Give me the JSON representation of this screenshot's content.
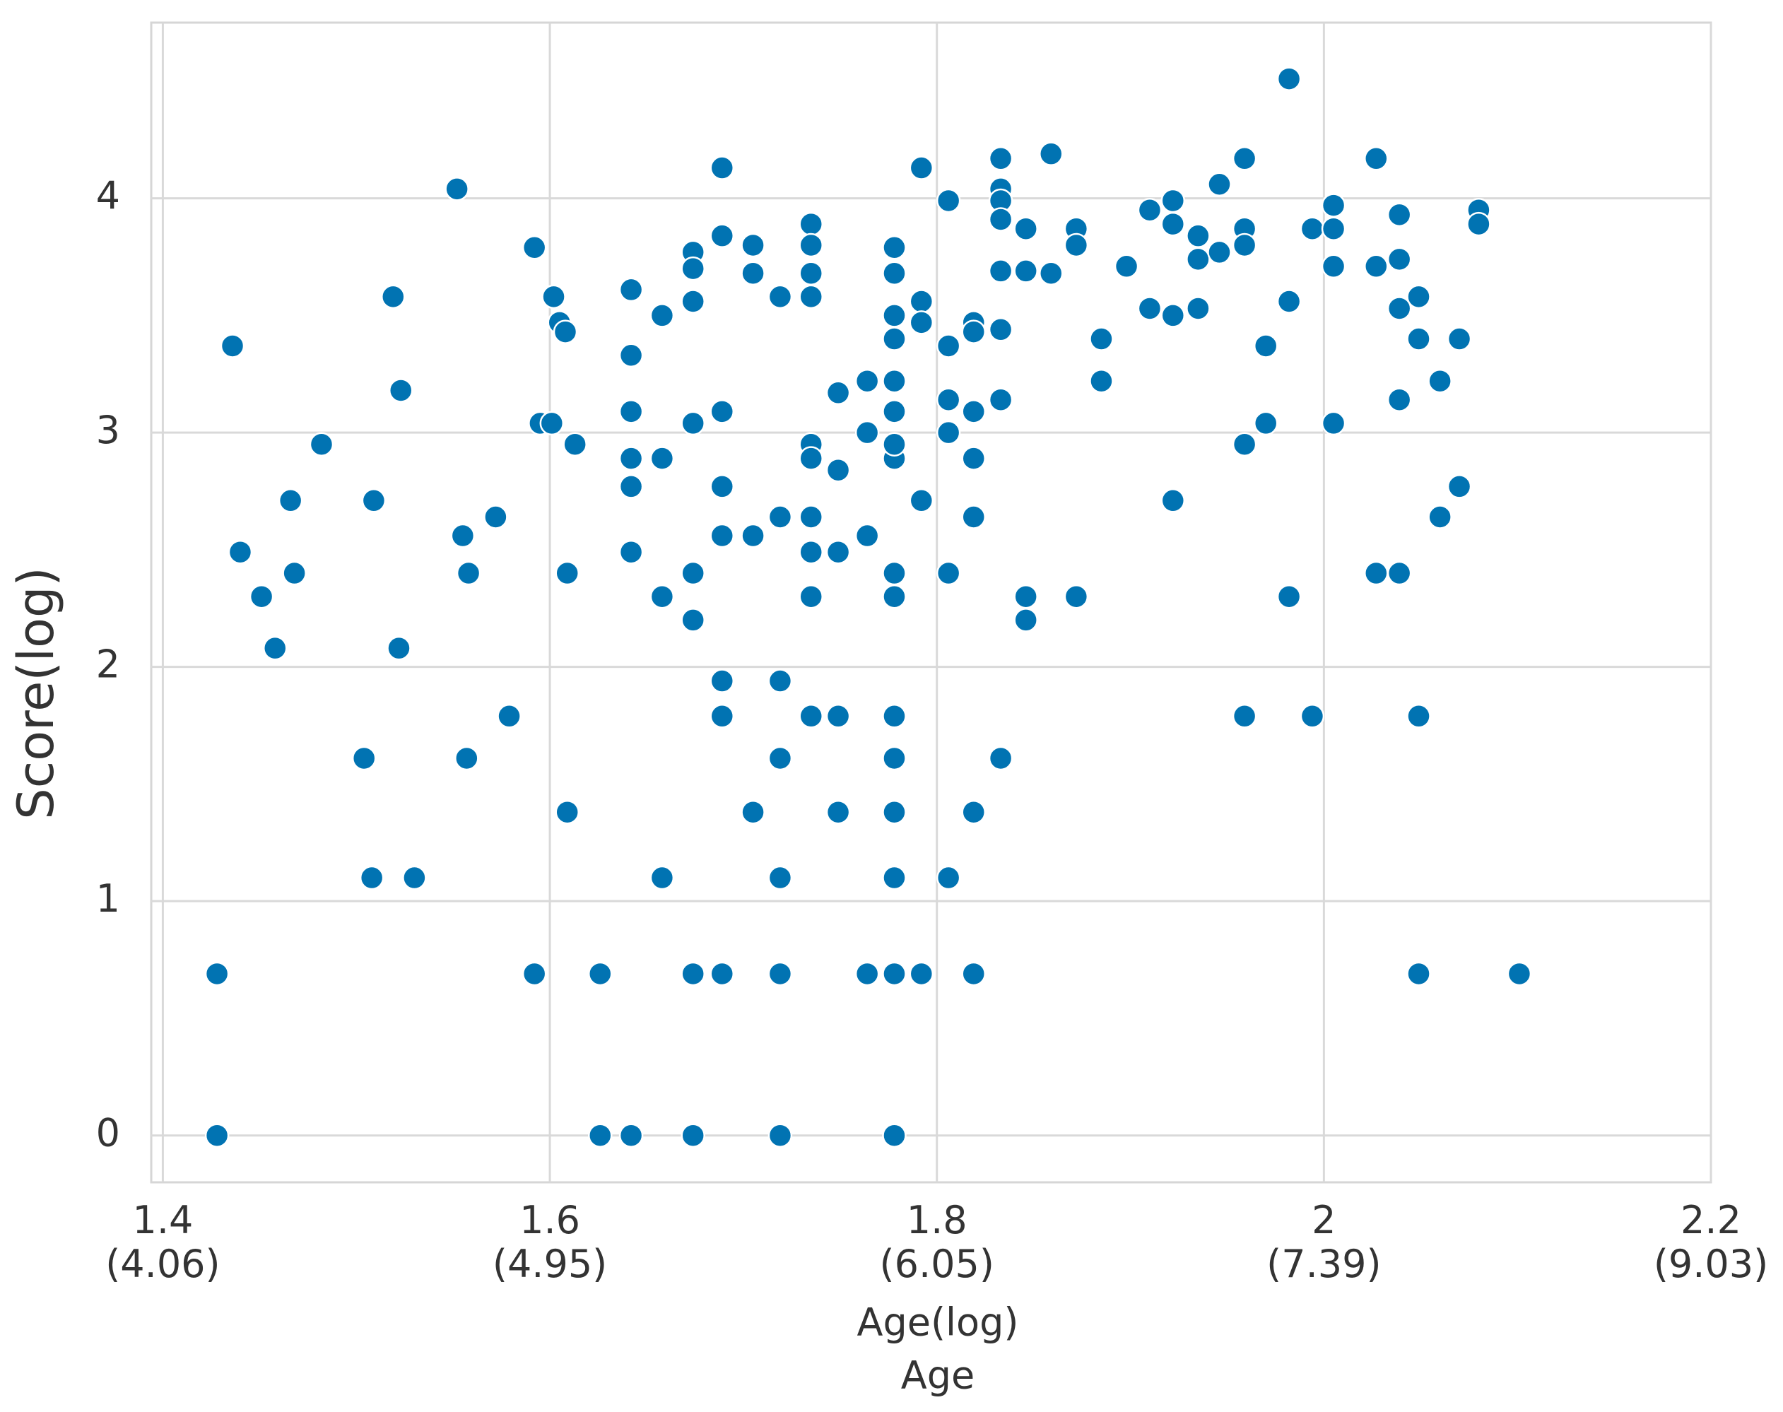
{
  "chart_data": {
    "type": "scatter",
    "xlabel": "Age(log)",
    "xlabel2": "Age",
    "ylabel": "Score(log)",
    "color": "#0173b2",
    "grid": true,
    "xlim": [
      1.394,
      2.2
    ],
    "ylim": [
      -0.2,
      4.75
    ],
    "xticks": [
      {
        "value": 1.4,
        "label": "1.4\n(4.06)"
      },
      {
        "value": 1.6,
        "label": "1.6\n(4.95)"
      },
      {
        "value": 1.8,
        "label": "1.8\n(6.05)"
      },
      {
        "value": 2.0,
        "label": "2\n(7.39)"
      },
      {
        "value": 2.2,
        "label": "2.2\n(9.03)"
      }
    ],
    "yticks": [
      0,
      1,
      2,
      3,
      4
    ],
    "x": [
      1.428,
      1.428,
      1.436,
      1.44,
      1.451,
      1.458,
      1.466,
      1.468,
      1.482,
      1.504,
      1.508,
      1.509,
      1.519,
      1.522,
      1.523,
      1.53,
      1.552,
      1.555,
      1.557,
      1.558,
      1.572,
      1.579,
      1.592,
      1.592,
      1.595,
      1.601,
      1.602,
      1.605,
      1.608,
      1.609,
      1.609,
      1.613,
      1.626,
      1.626,
      1.642,
      1.642,
      1.642,
      1.642,
      1.642,
      1.642,
      1.642,
      1.658,
      1.658,
      1.658,
      1.658,
      1.674,
      1.674,
      1.674,
      1.674,
      1.674,
      1.674,
      1.674,
      1.674,
      1.689,
      1.689,
      1.689,
      1.689,
      1.689,
      1.689,
      1.689,
      1.689,
      1.705,
      1.705,
      1.705,
      1.705,
      1.719,
      1.719,
      1.719,
      1.719,
      1.719,
      1.719,
      1.719,
      1.735,
      1.735,
      1.735,
      1.735,
      1.735,
      1.735,
      1.735,
      1.735,
      1.735,
      1.735,
      1.749,
      1.749,
      1.749,
      1.749,
      1.749,
      1.764,
      1.764,
      1.764,
      1.764,
      1.778,
      1.778,
      1.778,
      1.778,
      1.778,
      1.778,
      1.778,
      1.778,
      1.778,
      1.778,
      1.778,
      1.778,
      1.778,
      1.778,
      1.778,
      1.778,
      1.792,
      1.792,
      1.792,
      1.792,
      1.792,
      1.806,
      1.806,
      1.806,
      1.806,
      1.806,
      1.806,
      1.819,
      1.819,
      1.819,
      1.819,
      1.819,
      1.819,
      1.819,
      1.833,
      1.833,
      1.833,
      1.833,
      1.833,
      1.833,
      1.833,
      1.833,
      1.846,
      1.846,
      1.846,
      1.846,
      1.859,
      1.859,
      1.872,
      1.872,
      1.872,
      1.885,
      1.885,
      1.898,
      1.91,
      1.91,
      1.922,
      1.922,
      1.922,
      1.922,
      1.935,
      1.935,
      1.935,
      1.946,
      1.946,
      1.959,
      1.959,
      1.959,
      1.959,
      1.959,
      1.97,
      1.97,
      1.982,
      1.982,
      1.982,
      1.994,
      1.994,
      2.005,
      2.005,
      2.005,
      2.005,
      2.027,
      2.027,
      2.027,
      2.039,
      2.039,
      2.039,
      2.039,
      2.039,
      2.049,
      2.049,
      2.049,
      2.049,
      2.06,
      2.06,
      2.07,
      2.07,
      2.08,
      2.08,
      2.101
    ],
    "values": [
      0,
      0.69,
      3.37,
      2.49,
      2.3,
      2.08,
      2.71,
      2.4,
      2.95,
      1.61,
      1.1,
      2.71,
      3.58,
      2.08,
      3.18,
      1.1,
      4.04,
      2.56,
      1.61,
      2.4,
      2.64,
      1.79,
      3.79,
      0.69,
      3.04,
      3.04,
      3.58,
      3.47,
      3.43,
      2.4,
      1.38,
      2.95,
      0,
      0.69,
      0,
      3.61,
      3.33,
      3.09,
      2.89,
      2.77,
      2.49,
      3.5,
      2.89,
      2.3,
      1.1,
      0,
      0.69,
      3.77,
      3.7,
      3.56,
      3.04,
      2.4,
      2.2,
      4.13,
      3.84,
      3.09,
      2.77,
      2.56,
      1.94,
      1.79,
      0.69,
      3.8,
      3.68,
      2.56,
      1.38,
      0,
      0.69,
      1.1,
      1.61,
      1.94,
      2.64,
      3.58,
      3.89,
      3.8,
      3.68,
      3.58,
      2.95,
      2.89,
      2.64,
      2.49,
      2.3,
      1.79,
      3.17,
      2.84,
      2.49,
      1.79,
      1.38,
      3.22,
      3.0,
      2.56,
      0.69,
      0,
      0.69,
      1.1,
      1.38,
      1.61,
      1.79,
      2.3,
      2.4,
      2.89,
      2.95,
      3.09,
      3.22,
      3.4,
      3.5,
      3.68,
      3.79,
      4.13,
      3.56,
      3.47,
      2.71,
      0.69,
      3.99,
      3.37,
      3.14,
      3.0,
      2.4,
      1.1,
      3.47,
      3.43,
      3.09,
      2.89,
      2.64,
      1.38,
      0.69,
      4.17,
      4.04,
      3.99,
      3.91,
      3.69,
      3.44,
      3.14,
      1.61,
      3.87,
      3.69,
      2.3,
      2.2,
      4.19,
      3.68,
      3.87,
      3.8,
      2.3,
      3.4,
      3.22,
      3.71,
      3.95,
      3.53,
      3.99,
      3.89,
      3.5,
      2.71,
      3.84,
      3.74,
      3.53,
      4.06,
      3.77,
      4.17,
      3.87,
      3.8,
      2.95,
      1.79,
      3.37,
      3.04,
      4.51,
      3.56,
      2.3,
      3.87,
      1.79,
      3.97,
      3.87,
      3.71,
      3.04,
      4.17,
      3.71,
      2.4,
      3.93,
      3.74,
      3.53,
      3.14,
      2.4,
      3.58,
      3.4,
      1.79,
      0.69,
      3.22,
      2.64,
      3.4,
      2.77,
      3.95,
      3.89,
      0.69
    ]
  }
}
